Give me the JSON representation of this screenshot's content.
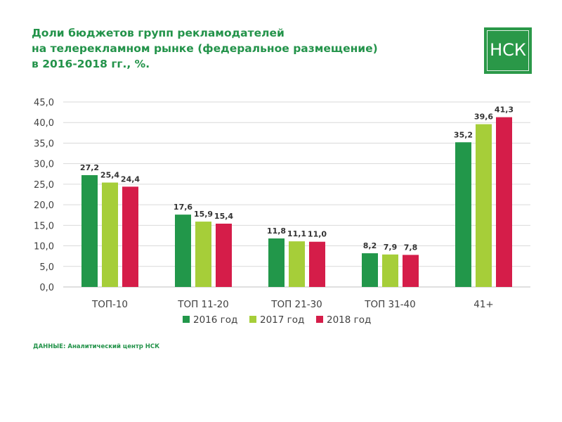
{
  "title_lines": [
    "Доли бюджетов групп рекламодателей",
    "на телерекламном рынке (федеральное размещение)",
    "в 2016-2018 гг., %."
  ],
  "logo": {
    "text": "НСК",
    "color": "#2a9848"
  },
  "source": {
    "label": "ДАННЫЕ:",
    "text": "Аналитический центр НСК"
  },
  "chart_data": {
    "type": "bar",
    "categories": [
      "ТОП-10",
      "ТОП 11-20",
      "ТОП 21-30",
      "ТОП 31-40",
      "41+"
    ],
    "series": [
      {
        "name": "2016 год",
        "color": "#22974a",
        "values": [
          27.2,
          17.6,
          11.8,
          8.2,
          35.2
        ],
        "labels": [
          "27,2",
          "17,6",
          "11,8",
          "8,2",
          "35,2"
        ]
      },
      {
        "name": "2017 год",
        "color": "#a6ce39",
        "values": [
          25.4,
          15.9,
          11.1,
          7.9,
          39.6
        ],
        "labels": [
          "25,4",
          "15,9",
          "11,1",
          "7,9",
          "39,6"
        ]
      },
      {
        "name": "2018 год",
        "color": "#d51d49",
        "values": [
          24.4,
          15.4,
          11.0,
          7.8,
          41.3
        ],
        "labels": [
          "24,4",
          "15,4",
          "11,0",
          "7,8",
          "41,3"
        ]
      }
    ],
    "ylim": [
      0,
      45
    ],
    "yticks": [
      "0,0",
      "5,0",
      "10,0",
      "15,0",
      "20,0",
      "25,0",
      "30,0",
      "35,0",
      "40,0",
      "45,0"
    ],
    "grid": true,
    "legend": "bottom"
  }
}
